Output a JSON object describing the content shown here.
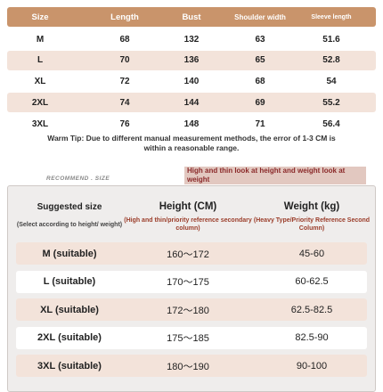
{
  "size_table": {
    "headers": [
      "Size",
      "Length",
      "Bust",
      "Shoulder width",
      "Sleeve length"
    ],
    "rows": [
      [
        "M",
        68,
        132,
        63,
        51.6
      ],
      [
        "L",
        70,
        136,
        65,
        52.8
      ],
      [
        "XL",
        72,
        140,
        68,
        54
      ],
      [
        "2XL",
        74,
        144,
        69,
        55.2
      ],
      [
        "3XL",
        76,
        148,
        71,
        56.4
      ]
    ]
  },
  "warm_tip": "Warm Tip: Due to different manual measurement methods, the error of 1-3 CM is within a reasonable range.",
  "recommend_label": "RECOMMEND . SIZE",
  "note": "High and thin look at height and weight look at weight",
  "suggestion_table": {
    "headers": [
      {
        "title": "Suggested size",
        "subtitle": "(Select according to height/ weight)"
      },
      {
        "title": "Height (CM)",
        "subtitle": "(High and thin/priority reference secondary column)"
      },
      {
        "title": "Weight (kg)",
        "subtitle": "(Heavy Type/Priority Reference Second Column)"
      }
    ],
    "rows": [
      [
        "M (suitable)",
        "160～172",
        "45-60"
      ],
      [
        "L (suitable)",
        "170～175",
        "60-62.5"
      ],
      [
        "XL (suitable)",
        "172～180",
        "62.5-82.5"
      ],
      [
        "2XL (suitable)",
        "175～185",
        "82.5-90"
      ],
      [
        "3XL (suitable)",
        "180～190",
        "90-100"
      ]
    ]
  }
}
